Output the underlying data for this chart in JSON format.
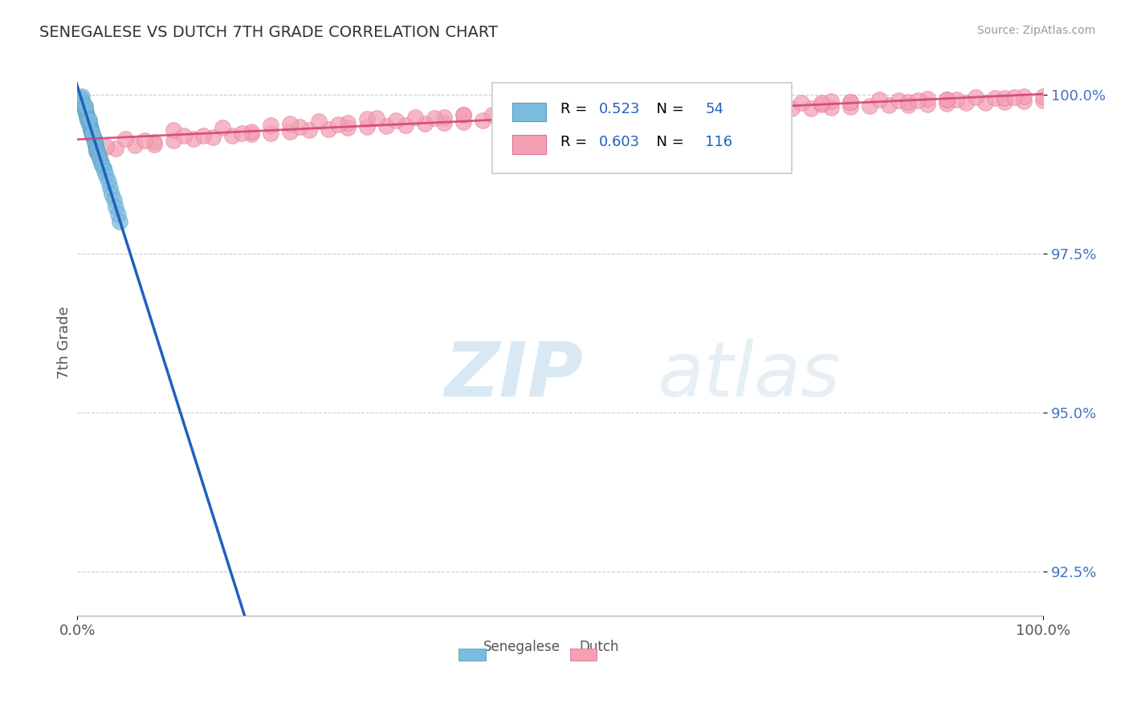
{
  "title": "SENEGALESE VS DUTCH 7TH GRADE CORRELATION CHART",
  "source_text": "Source: ZipAtlas.com",
  "ylabel": "7th Grade",
  "xlim": [
    0.0,
    1.0
  ],
  "ylim": [
    0.918,
    1.004
  ],
  "yticks": [
    0.925,
    0.95,
    0.975,
    1.0
  ],
  "ytick_labels": [
    "92.5%",
    "95.0%",
    "97.5%",
    "100.0%"
  ],
  "xticks": [
    0.0,
    1.0
  ],
  "xtick_labels": [
    "0.0%",
    "100.0%"
  ],
  "senegalese_color": "#7abcde",
  "senegalese_edge_color": "#5a9dbf",
  "dutch_color": "#f4a0b5",
  "dutch_edge_color": "#e07090",
  "trendline_blue": "#2060c0",
  "trendline_pink": "#d04070",
  "senegalese_R": 0.523,
  "senegalese_N": 54,
  "dutch_R": 0.603,
  "dutch_N": 116,
  "legend_label_1": "Senegalese",
  "legend_label_2": "Dutch",
  "legend_R_color": "#2060c0",
  "legend_N_color": "#2060c0",
  "grid_color": "#cccccc",
  "background_color": "#ffffff",
  "title_color": "#333333",
  "source_color": "#999999",
  "ytick_color": "#4472c4",
  "watermark_color": "#cce8f4",
  "senegalese_scatter_x": [
    0.003,
    0.004,
    0.005,
    0.006,
    0.006,
    0.007,
    0.007,
    0.008,
    0.008,
    0.009,
    0.009,
    0.01,
    0.01,
    0.011,
    0.011,
    0.012,
    0.012,
    0.013,
    0.013,
    0.014,
    0.014,
    0.015,
    0.015,
    0.016,
    0.016,
    0.017,
    0.017,
    0.018,
    0.018,
    0.019,
    0.019,
    0.02,
    0.02,
    0.021,
    0.022,
    0.022,
    0.023,
    0.024,
    0.025,
    0.026,
    0.027,
    0.028,
    0.03,
    0.032,
    0.034,
    0.036,
    0.038,
    0.04,
    0.042,
    0.044,
    0.005,
    0.008,
    0.012,
    0.016
  ],
  "senegalese_scatter_y": [
    0.9995,
    0.9992,
    0.999,
    0.9988,
    0.9985,
    0.9983,
    0.998,
    0.9978,
    0.9975,
    0.9973,
    0.997,
    0.9968,
    0.9965,
    0.9962,
    0.996,
    0.9958,
    0.9955,
    0.9952,
    0.995,
    0.9947,
    0.9945,
    0.9942,
    0.994,
    0.9937,
    0.9935,
    0.9932,
    0.993,
    0.9927,
    0.9924,
    0.9922,
    0.9919,
    0.9916,
    0.9913,
    0.991,
    0.9907,
    0.9904,
    0.99,
    0.9897,
    0.9893,
    0.9889,
    0.9885,
    0.988,
    0.9872,
    0.9863,
    0.9854,
    0.9844,
    0.9834,
    0.9823,
    0.9812,
    0.98,
    0.9997,
    0.9982,
    0.9961,
    0.994
  ],
  "dutch_scatter_x": [
    0.02,
    0.04,
    0.06,
    0.08,
    0.1,
    0.12,
    0.14,
    0.16,
    0.18,
    0.2,
    0.22,
    0.24,
    0.26,
    0.28,
    0.3,
    0.32,
    0.34,
    0.36,
    0.38,
    0.4,
    0.42,
    0.44,
    0.46,
    0.48,
    0.5,
    0.52,
    0.54,
    0.56,
    0.58,
    0.6,
    0.62,
    0.64,
    0.66,
    0.68,
    0.7,
    0.72,
    0.74,
    0.76,
    0.78,
    0.8,
    0.82,
    0.84,
    0.86,
    0.88,
    0.9,
    0.92,
    0.94,
    0.96,
    0.98,
    1.0,
    0.05,
    0.1,
    0.15,
    0.2,
    0.25,
    0.3,
    0.35,
    0.4,
    0.45,
    0.5,
    0.55,
    0.6,
    0.65,
    0.7,
    0.75,
    0.8,
    0.85,
    0.9,
    0.95,
    1.0,
    0.08,
    0.13,
    0.18,
    0.23,
    0.28,
    0.33,
    0.38,
    0.43,
    0.48,
    0.53,
    0.58,
    0.63,
    0.68,
    0.73,
    0.78,
    0.83,
    0.88,
    0.93,
    0.98,
    0.03,
    0.07,
    0.11,
    0.22,
    0.31,
    0.44,
    0.55,
    0.66,
    0.77,
    0.86,
    0.91,
    0.96,
    0.17,
    0.27,
    0.37,
    0.47,
    0.57,
    0.67,
    0.77,
    0.87,
    0.97,
    0.5,
    0.6,
    0.7,
    0.4,
    0.8,
    0.9
  ],
  "dutch_scatter_y": [
    0.991,
    0.9915,
    0.992,
    0.9925,
    0.9928,
    0.993,
    0.9933,
    0.9936,
    0.9938,
    0.994,
    0.9942,
    0.9944,
    0.9946,
    0.9948,
    0.995,
    0.9951,
    0.9952,
    0.9954,
    0.9956,
    0.9957,
    0.9959,
    0.996,
    0.9962,
    0.9963,
    0.9964,
    0.9965,
    0.9967,
    0.9968,
    0.997,
    0.9971,
    0.9972,
    0.9973,
    0.9974,
    0.9975,
    0.9976,
    0.9977,
    0.9978,
    0.9979,
    0.998,
    0.9981,
    0.9982,
    0.9983,
    0.9984,
    0.9985,
    0.9986,
    0.9987,
    0.9988,
    0.9989,
    0.999,
    0.9991,
    0.993,
    0.9945,
    0.9948,
    0.9952,
    0.9958,
    0.9962,
    0.9965,
    0.9968,
    0.9972,
    0.9975,
    0.9978,
    0.998,
    0.9983,
    0.9985,
    0.9987,
    0.9989,
    0.9991,
    0.9993,
    0.9995,
    0.9997,
    0.9922,
    0.9935,
    0.9942,
    0.995,
    0.9956,
    0.996,
    0.9965,
    0.9969,
    0.9973,
    0.9977,
    0.998,
    0.9983,
    0.9986,
    0.9988,
    0.999,
    0.9992,
    0.9994,
    0.9996,
    0.9998,
    0.9918,
    0.9928,
    0.9936,
    0.9955,
    0.9963,
    0.997,
    0.9976,
    0.9981,
    0.9985,
    0.9989,
    0.9992,
    0.9995,
    0.994,
    0.9953,
    0.9963,
    0.997,
    0.9977,
    0.9982,
    0.9987,
    0.9991,
    0.9996,
    0.9976,
    0.9981,
    0.9986,
    0.9968,
    0.9989,
    0.9993
  ]
}
